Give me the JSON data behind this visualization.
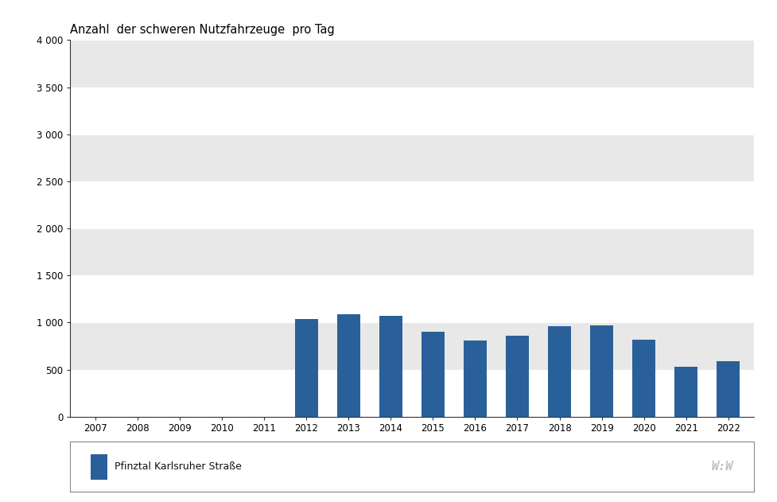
{
  "title": "Anzahl  der schweren Nutzfahrzeuge  pro Tag",
  "years": [
    2007,
    2008,
    2009,
    2010,
    2011,
    2012,
    2013,
    2014,
    2015,
    2016,
    2017,
    2018,
    2019,
    2020,
    2021,
    2022
  ],
  "values": [
    null,
    null,
    null,
    null,
    null,
    1040,
    1090,
    1070,
    900,
    810,
    860,
    960,
    970,
    820,
    530,
    590
  ],
  "bar_color": "#2a6099",
  "ylim": [
    0,
    4000
  ],
  "yticks": [
    0,
    500,
    1000,
    1500,
    2000,
    2500,
    3000,
    3500,
    4000
  ],
  "ytick_labels": [
    "0",
    "500",
    "1 000",
    "1 500",
    "2 000",
    "2 500",
    "3 000",
    "3 500",
    "4 000"
  ],
  "band_colors": [
    "#ffffff",
    "#e8e8e8",
    "#ffffff",
    "#e8e8e8",
    "#ffffff",
    "#e8e8e8",
    "#ffffff",
    "#e8e8e8"
  ],
  "fig_bg_color": "#ffffff",
  "legend_label": "Pfinztal Karlsruher Straße",
  "watermark": "W:W",
  "bar_width": 0.55
}
